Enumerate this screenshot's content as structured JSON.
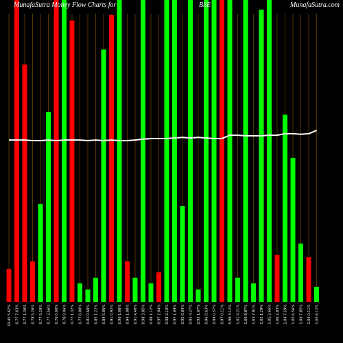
{
  "chart_data": {
    "type": "bar",
    "title": "MunafaSutra  Money Flow  Charts for",
    "subtitle": "BSE",
    "watermark": "MunafaSutra.com",
    "categories": [
      "10.45 5.62%",
      "0.77 7.63%",
      "0.77 1.30%",
      "0.78 5.26%",
      "0.77 5.20%",
      "0.77 2.56%",
      "0.76 0.00%",
      "0.78 0.06%",
      "0.77 1.32%",
      "0.77 0.00%",
      "0.81 0.60%",
      "0.85 1.22%",
      "0.84 5.06%",
      "0.91 0.92%",
      "0.90 1.08%",
      "0.94 1.08%",
      "0.91 4.40%",
      "0.98 3.85%",
      "0.88 1.12%",
      "0.97 2.04%",
      "0.98 2.10%",
      "0.97 1.69%",
      "0.95 0.84%",
      "0.92 4.27%",
      "0.93 1.07%",
      "0.96 0.63%",
      "0.98 0.57%",
      "0.97 0.11%",
      "0.99 3.12%",
      "1.01 4.21%",
      "1.00 8.87%",
      "1.03 7.91%",
      "1.02 1.29%",
      "1.05 2.66%",
      "1.06 2.83%",
      "1.04 7.59%",
      "1.05 6.56%",
      "1.06 7.85%",
      "1.04 0.11%",
      "1.05 6.12%"
    ],
    "series": [
      {
        "name": "Money Flow",
        "values": [
          10.9,
          100,
          78.6,
          13.4,
          32.5,
          62.9,
          100,
          100,
          93.2,
          6.1,
          4.1,
          8,
          83.6,
          95,
          100,
          13.4,
          8,
          100,
          6.1,
          9.8,
          100,
          100,
          31.8,
          100,
          4.1,
          100,
          100,
          100,
          100,
          8,
          100,
          6.1,
          96.8,
          100,
          15.5,
          62,
          47.7,
          19.3,
          14.8,
          5
        ],
        "colors": [
          "#ff0000",
          "#ff0000",
          "#ff0000",
          "#ff0000",
          "#00ff00",
          "#00ff00",
          "#ff0000",
          "#00ff00",
          "#ff0000",
          "#00ff00",
          "#00ff00",
          "#00ff00",
          "#00ff00",
          "#ff0000",
          "#00ff00",
          "#ff0000",
          "#00ff00",
          "#00ff00",
          "#00ff00",
          "#ff0000",
          "#00ff00",
          "#00ff00",
          "#00ff00",
          "#00ff00",
          "#00ff00",
          "#00ff00",
          "#00ff00",
          "#ff0000",
          "#00ff00",
          "#00ff00",
          "#00ff00",
          "#00ff00",
          "#00ff00",
          "#00ff00",
          "#ff0000",
          "#00ff00",
          "#00ff00",
          "#00ff00",
          "#ff0000",
          "#00ff00"
        ]
      },
      {
        "name": "Price",
        "color": "#ffffff",
        "values": [
          53.6,
          53.6,
          53.6,
          53.4,
          53.4,
          53.6,
          53.4,
          53.6,
          53.6,
          53.6,
          53.4,
          53.6,
          53.4,
          53.6,
          53.4,
          53.4,
          53.6,
          53.9,
          54.1,
          54.1,
          54.1,
          54.3,
          54.5,
          54.3,
          54.5,
          54.3,
          54.1,
          54.1,
          55.2,
          55.2,
          55,
          55,
          55,
          55.2,
          55.2,
          55.7,
          55.7,
          55.5,
          55.7,
          56.8
        ]
      }
    ],
    "ylim": [
      0,
      100
    ]
  }
}
